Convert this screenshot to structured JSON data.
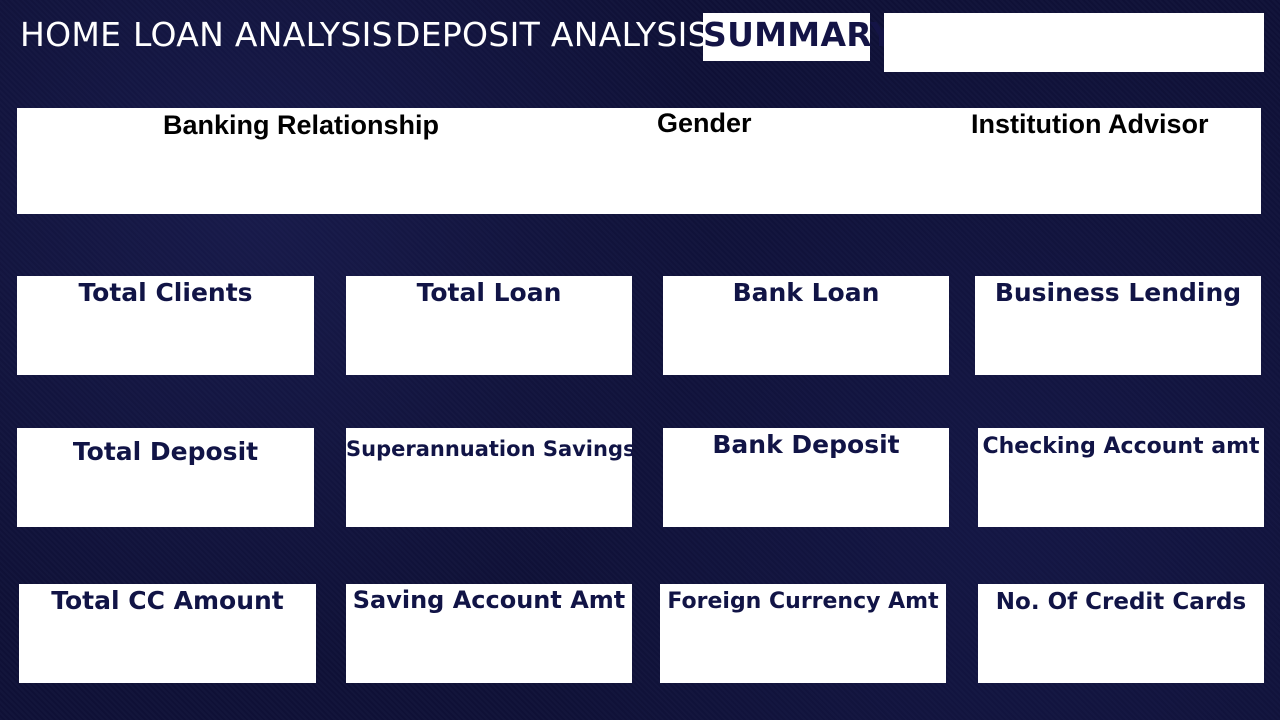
{
  "nav": {
    "home": "HOME",
    "loan_analysis": "LOAN ANALYSIS",
    "deposit_analysis": "DEPOSIT ANALYSIS",
    "summary": "SUMMARY"
  },
  "slicers": {
    "banking_relationship": "Banking Relationship",
    "gender": "Gender",
    "institution_advisor": "Institution Advisor"
  },
  "cards": {
    "total_clients": "Total Clients",
    "total_loan": "Total Loan",
    "bank_loan": "Bank Loan",
    "business_lending": "Business Lending",
    "total_deposit": "Total Deposit",
    "superannuation_savings": "Superannuation Savings",
    "bank_deposit": "Bank Deposit",
    "checking_account_amt": "Checking Account amt",
    "total_cc_amount": "Total CC Amount",
    "saving_account_amt": "Saving Account Amt",
    "foreign_currency_amt": "Foreign Currency Amt",
    "no_of_credit_cards": "No. Of Credit Cards"
  },
  "colors": {
    "background": "#0f1138",
    "card_title": "#111446",
    "active_tab_bg": "#ffffff"
  }
}
